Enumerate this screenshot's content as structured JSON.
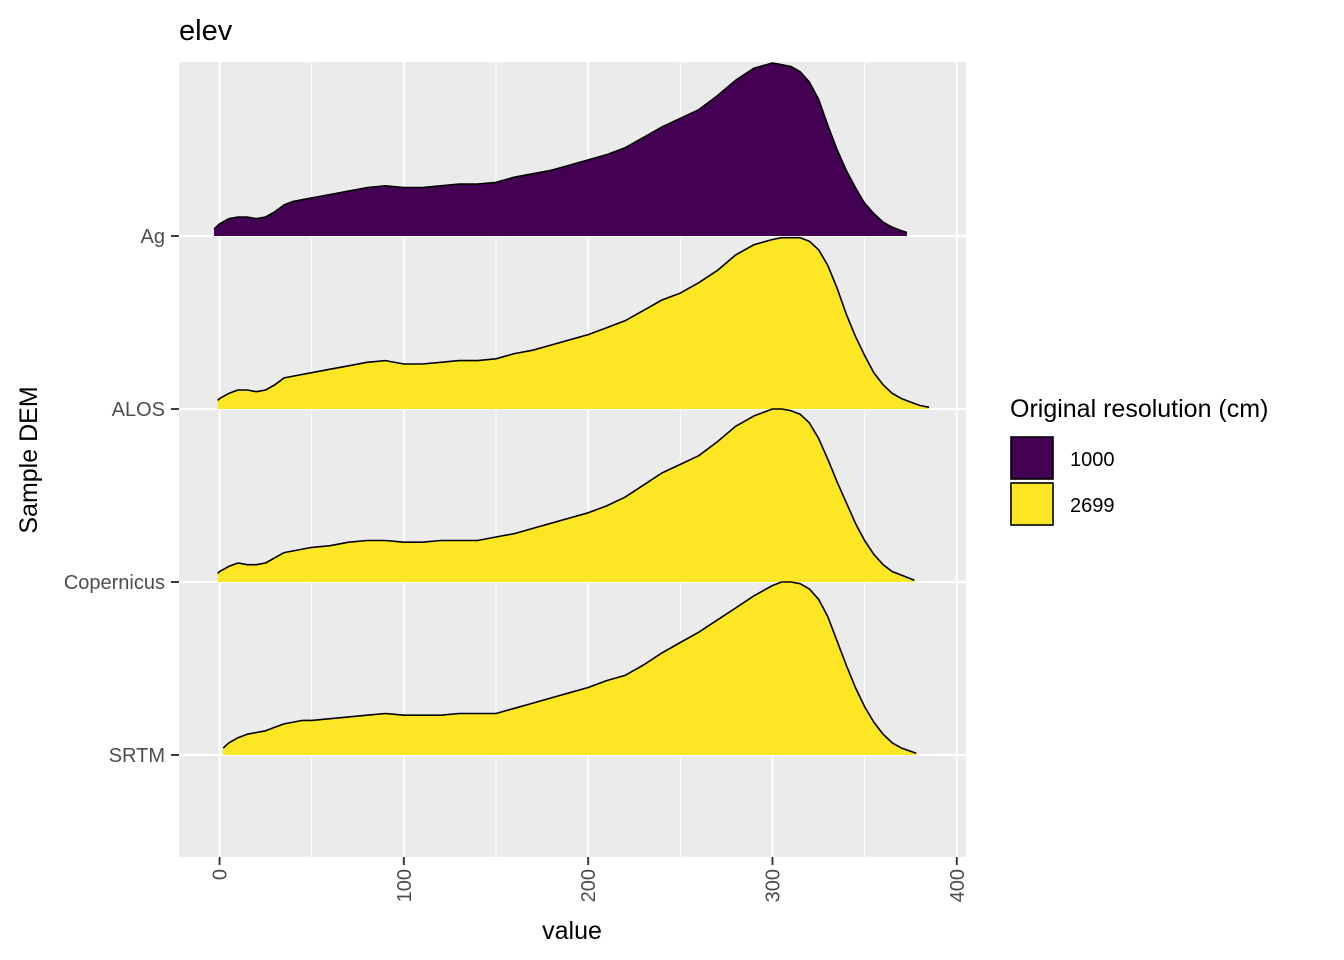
{
  "chart_data": {
    "type": "ridgeline",
    "title": "elev",
    "xlabel": "value",
    "ylabel": "Sample DEM",
    "xlim": [
      -22,
      405
    ],
    "x_ticks": [
      0,
      100,
      200,
      300,
      400
    ],
    "categories": [
      "Ag",
      "ALOS",
      "Copernicus",
      "SRTM"
    ],
    "legend": {
      "title": "Original resolution (cm)",
      "position": "right",
      "entries": [
        {
          "label": "1000",
          "color": "#440154"
        },
        {
          "label": "2699",
          "color": "#FDE725"
        }
      ]
    },
    "background_color": "#EBEBEB",
    "grid": true,
    "series": [
      {
        "category": "Ag",
        "fill_label": "1000",
        "color": "#440154",
        "x": [
          -3,
          0,
          5,
          10,
          15,
          20,
          25,
          30,
          35,
          40,
          45,
          50,
          60,
          70,
          80,
          90,
          100,
          110,
          120,
          130,
          140,
          150,
          160,
          170,
          180,
          190,
          200,
          210,
          220,
          230,
          240,
          250,
          260,
          270,
          280,
          290,
          300,
          305,
          310,
          315,
          320,
          325,
          330,
          335,
          340,
          345,
          350,
          355,
          360,
          365,
          370,
          373
        ],
        "density": [
          0.04,
          0.07,
          0.1,
          0.11,
          0.11,
          0.1,
          0.11,
          0.14,
          0.18,
          0.2,
          0.21,
          0.22,
          0.24,
          0.26,
          0.28,
          0.29,
          0.28,
          0.28,
          0.29,
          0.3,
          0.3,
          0.31,
          0.34,
          0.36,
          0.38,
          0.41,
          0.44,
          0.47,
          0.51,
          0.57,
          0.63,
          0.68,
          0.73,
          0.81,
          0.9,
          0.97,
          1.0,
          0.99,
          0.98,
          0.95,
          0.89,
          0.79,
          0.64,
          0.5,
          0.38,
          0.28,
          0.19,
          0.13,
          0.08,
          0.05,
          0.03,
          0.02
        ]
      },
      {
        "category": "ALOS",
        "fill_label": "2699",
        "color": "#FDE725",
        "x": [
          -1,
          0,
          5,
          10,
          15,
          20,
          25,
          30,
          35,
          40,
          45,
          50,
          60,
          70,
          80,
          90,
          100,
          110,
          120,
          130,
          140,
          150,
          160,
          170,
          180,
          190,
          200,
          210,
          220,
          230,
          240,
          250,
          260,
          270,
          280,
          290,
          300,
          305,
          310,
          315,
          320,
          325,
          330,
          335,
          340,
          345,
          350,
          355,
          360,
          365,
          370,
          375,
          380,
          385
        ],
        "density": [
          0.05,
          0.06,
          0.09,
          0.11,
          0.11,
          0.1,
          0.11,
          0.14,
          0.18,
          0.19,
          0.2,
          0.21,
          0.23,
          0.25,
          0.27,
          0.28,
          0.26,
          0.26,
          0.27,
          0.28,
          0.28,
          0.29,
          0.32,
          0.34,
          0.37,
          0.4,
          0.43,
          0.47,
          0.51,
          0.57,
          0.63,
          0.67,
          0.73,
          0.8,
          0.89,
          0.95,
          0.98,
          0.99,
          0.99,
          0.99,
          0.97,
          0.92,
          0.83,
          0.7,
          0.55,
          0.42,
          0.31,
          0.21,
          0.14,
          0.09,
          0.06,
          0.04,
          0.02,
          0.01
        ]
      },
      {
        "category": "Copernicus",
        "fill_label": "2699",
        "color": "#FDE725",
        "x": [
          -1,
          0,
          5,
          10,
          15,
          20,
          25,
          30,
          35,
          40,
          45,
          50,
          60,
          70,
          80,
          90,
          100,
          110,
          120,
          130,
          140,
          150,
          160,
          170,
          180,
          190,
          200,
          210,
          220,
          230,
          240,
          250,
          260,
          270,
          280,
          290,
          300,
          305,
          310,
          315,
          320,
          325,
          330,
          335,
          340,
          345,
          350,
          355,
          360,
          365,
          370,
          377
        ],
        "density": [
          0.05,
          0.06,
          0.09,
          0.11,
          0.1,
          0.1,
          0.11,
          0.14,
          0.17,
          0.18,
          0.19,
          0.2,
          0.21,
          0.23,
          0.24,
          0.24,
          0.23,
          0.23,
          0.24,
          0.24,
          0.24,
          0.26,
          0.28,
          0.31,
          0.34,
          0.37,
          0.4,
          0.44,
          0.49,
          0.56,
          0.63,
          0.68,
          0.73,
          0.81,
          0.9,
          0.96,
          1.0,
          1.0,
          0.99,
          0.97,
          0.92,
          0.83,
          0.71,
          0.58,
          0.46,
          0.34,
          0.24,
          0.16,
          0.1,
          0.06,
          0.04,
          0.01
        ]
      },
      {
        "category": "SRTM",
        "fill_label": "2699",
        "color": "#FDE725",
        "x": [
          2,
          5,
          10,
          15,
          20,
          25,
          30,
          35,
          40,
          45,
          50,
          60,
          70,
          80,
          90,
          100,
          110,
          120,
          130,
          140,
          150,
          160,
          170,
          180,
          190,
          200,
          210,
          220,
          230,
          240,
          250,
          260,
          270,
          280,
          290,
          300,
          305,
          310,
          315,
          320,
          325,
          330,
          335,
          340,
          345,
          350,
          355,
          360,
          365,
          370,
          378
        ],
        "density": [
          0.04,
          0.07,
          0.1,
          0.12,
          0.13,
          0.14,
          0.16,
          0.18,
          0.19,
          0.2,
          0.2,
          0.21,
          0.22,
          0.23,
          0.24,
          0.23,
          0.23,
          0.23,
          0.24,
          0.24,
          0.24,
          0.27,
          0.3,
          0.33,
          0.36,
          0.39,
          0.43,
          0.46,
          0.52,
          0.59,
          0.65,
          0.71,
          0.78,
          0.85,
          0.92,
          0.98,
          1.0,
          1.0,
          0.99,
          0.96,
          0.9,
          0.8,
          0.66,
          0.52,
          0.39,
          0.28,
          0.19,
          0.12,
          0.07,
          0.04,
          0.01
        ]
      }
    ]
  }
}
